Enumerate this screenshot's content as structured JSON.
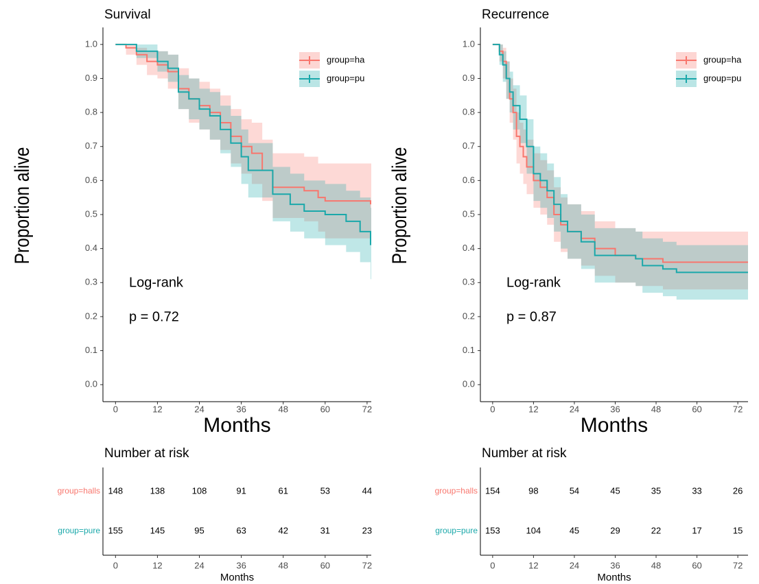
{
  "chart_data": [
    {
      "type": "km",
      "title": "Survival",
      "xlabel": "Months",
      "ylabel": "Proportion alive",
      "xlim": [
        -3.6,
        73.2
      ],
      "ylim": [
        -0.05,
        1.05
      ],
      "xticks": [
        0,
        12,
        24,
        36,
        48,
        60,
        72
      ],
      "yticks": [
        {
          "value": 0,
          "label": "0.0"
        },
        0.1,
        0.2,
        0.3,
        0.4,
        0.5,
        0.6,
        0.7,
        0.8,
        0.9,
        {
          "value": 1,
          "label": "1.0"
        }
      ],
      "legend": "top-right",
      "annotations": [
        "Log-rank",
        "p = 0.72"
      ],
      "series": [
        {
          "name": "group=ha",
          "color": "#f8766d",
          "x": [
            0,
            3,
            6,
            9,
            12,
            15,
            18,
            21,
            24,
            27,
            30,
            33,
            36,
            39,
            42,
            45,
            54,
            58,
            60,
            73
          ],
          "values": [
            1,
            0.99,
            0.97,
            0.95,
            0.94,
            0.92,
            0.87,
            0.84,
            0.82,
            0.8,
            0.77,
            0.73,
            0.7,
            0.68,
            0.63,
            0.58,
            0.57,
            0.55,
            0.54,
            0.53
          ],
          "upper": [
            1,
            1,
            0.99,
            0.98,
            0.98,
            0.97,
            0.93,
            0.9,
            0.89,
            0.87,
            0.85,
            0.81,
            0.78,
            0.77,
            0.72,
            0.68,
            0.67,
            0.65,
            0.65,
            0.65
          ],
          "lower": [
            1,
            0.97,
            0.94,
            0.91,
            0.9,
            0.87,
            0.81,
            0.77,
            0.75,
            0.72,
            0.69,
            0.65,
            0.62,
            0.59,
            0.54,
            0.49,
            0.48,
            0.45,
            0.43,
            0.42
          ]
        },
        {
          "name": "group=pu",
          "color": "#1aa8aa",
          "x": [
            0,
            6,
            12,
            15,
            18,
            21,
            24,
            27,
            30,
            33,
            36,
            38,
            45,
            50,
            54,
            60,
            66,
            70,
            73
          ],
          "values": [
            1,
            0.98,
            0.95,
            0.93,
            0.86,
            0.84,
            0.81,
            0.79,
            0.75,
            0.71,
            0.67,
            0.63,
            0.56,
            0.53,
            0.51,
            0.5,
            0.48,
            0.45,
            0.41
          ],
          "upper": [
            1,
            1,
            0.98,
            0.97,
            0.91,
            0.9,
            0.87,
            0.86,
            0.82,
            0.79,
            0.75,
            0.71,
            0.64,
            0.62,
            0.6,
            0.59,
            0.57,
            0.55,
            0.52
          ],
          "lower": [
            1,
            0.96,
            0.92,
            0.89,
            0.81,
            0.78,
            0.75,
            0.72,
            0.68,
            0.64,
            0.59,
            0.55,
            0.48,
            0.45,
            0.43,
            0.41,
            0.39,
            0.36,
            0.31
          ]
        }
      ],
      "risk_table": {
        "title": "Number at risk",
        "xlabel": "Months",
        "rows": [
          {
            "name": "group=halls",
            "color": "#f8766d",
            "values": [
              148,
              138,
              108,
              91,
              61,
              53,
              44
            ]
          },
          {
            "name": "group=pure",
            "color": "#1aa8aa",
            "values": [
              155,
              145,
              95,
              63,
              42,
              31,
              23
            ]
          }
        ]
      }
    },
    {
      "type": "km",
      "title": "Recurrence",
      "xlabel": "Months",
      "ylabel": "Proportion alive",
      "xlim": [
        -3.6,
        75
      ],
      "ylim": [
        -0.05,
        1.05
      ],
      "xticks": [
        0,
        12,
        24,
        36,
        48,
        60,
        72
      ],
      "yticks": [
        {
          "value": 0,
          "label": "0.0"
        },
        0.1,
        0.2,
        0.3,
        0.4,
        0.5,
        0.6,
        0.7,
        0.8,
        0.9,
        {
          "value": 1,
          "label": "1.0"
        }
      ],
      "legend": "top-right",
      "annotations": [
        "Log-rank",
        "p = 0.87"
      ],
      "series": [
        {
          "name": "group=ha",
          "color": "#f8766d",
          "x": [
            0,
            2,
            3,
            4,
            5,
            6,
            7,
            8,
            9,
            10,
            12,
            14,
            16,
            18,
            20,
            22,
            26,
            30,
            36,
            42,
            50,
            75
          ],
          "values": [
            1,
            0.98,
            0.95,
            0.9,
            0.84,
            0.8,
            0.73,
            0.7,
            0.67,
            0.64,
            0.6,
            0.58,
            0.55,
            0.5,
            0.47,
            0.45,
            0.43,
            0.4,
            0.38,
            0.37,
            0.36,
            0.36
          ],
          "upper": [
            1,
            1,
            0.99,
            0.95,
            0.9,
            0.87,
            0.8,
            0.77,
            0.75,
            0.72,
            0.68,
            0.66,
            0.63,
            0.58,
            0.55,
            0.53,
            0.51,
            0.48,
            0.46,
            0.45,
            0.45,
            0.45
          ],
          "lower": [
            1,
            0.95,
            0.9,
            0.84,
            0.77,
            0.72,
            0.65,
            0.62,
            0.59,
            0.56,
            0.52,
            0.5,
            0.47,
            0.42,
            0.39,
            0.37,
            0.35,
            0.32,
            0.3,
            0.29,
            0.28,
            0.28
          ]
        },
        {
          "name": "group=pu",
          "color": "#1aa8aa",
          "x": [
            0,
            2,
            3,
            4,
            5,
            6,
            8,
            10,
            12,
            14,
            16,
            18,
            20,
            22,
            26,
            30,
            42,
            44,
            50,
            54,
            75
          ],
          "values": [
            1,
            0.97,
            0.94,
            0.9,
            0.86,
            0.82,
            0.78,
            0.7,
            0.62,
            0.6,
            0.57,
            0.53,
            0.48,
            0.45,
            0.42,
            0.38,
            0.37,
            0.35,
            0.34,
            0.33,
            0.33
          ],
          "upper": [
            1,
            1,
            0.98,
            0.95,
            0.92,
            0.88,
            0.85,
            0.78,
            0.7,
            0.68,
            0.65,
            0.61,
            0.56,
            0.53,
            0.5,
            0.46,
            0.45,
            0.43,
            0.42,
            0.41,
            0.41
          ],
          "lower": [
            1,
            0.94,
            0.89,
            0.84,
            0.8,
            0.75,
            0.71,
            0.62,
            0.54,
            0.52,
            0.49,
            0.45,
            0.4,
            0.37,
            0.34,
            0.3,
            0.29,
            0.27,
            0.26,
            0.25,
            0.25
          ]
        }
      ],
      "risk_table": {
        "title": "Number at risk",
        "xlabel": "Months",
        "rows": [
          {
            "name": "group=halls",
            "color": "#f8766d",
            "values": [
              154,
              98,
              54,
              45,
              35,
              33,
              26
            ]
          },
          {
            "name": "group=pure",
            "color": "#1aa8aa",
            "values": [
              153,
              104,
              45,
              29,
              22,
              17,
              15
            ]
          }
        ]
      }
    }
  ]
}
